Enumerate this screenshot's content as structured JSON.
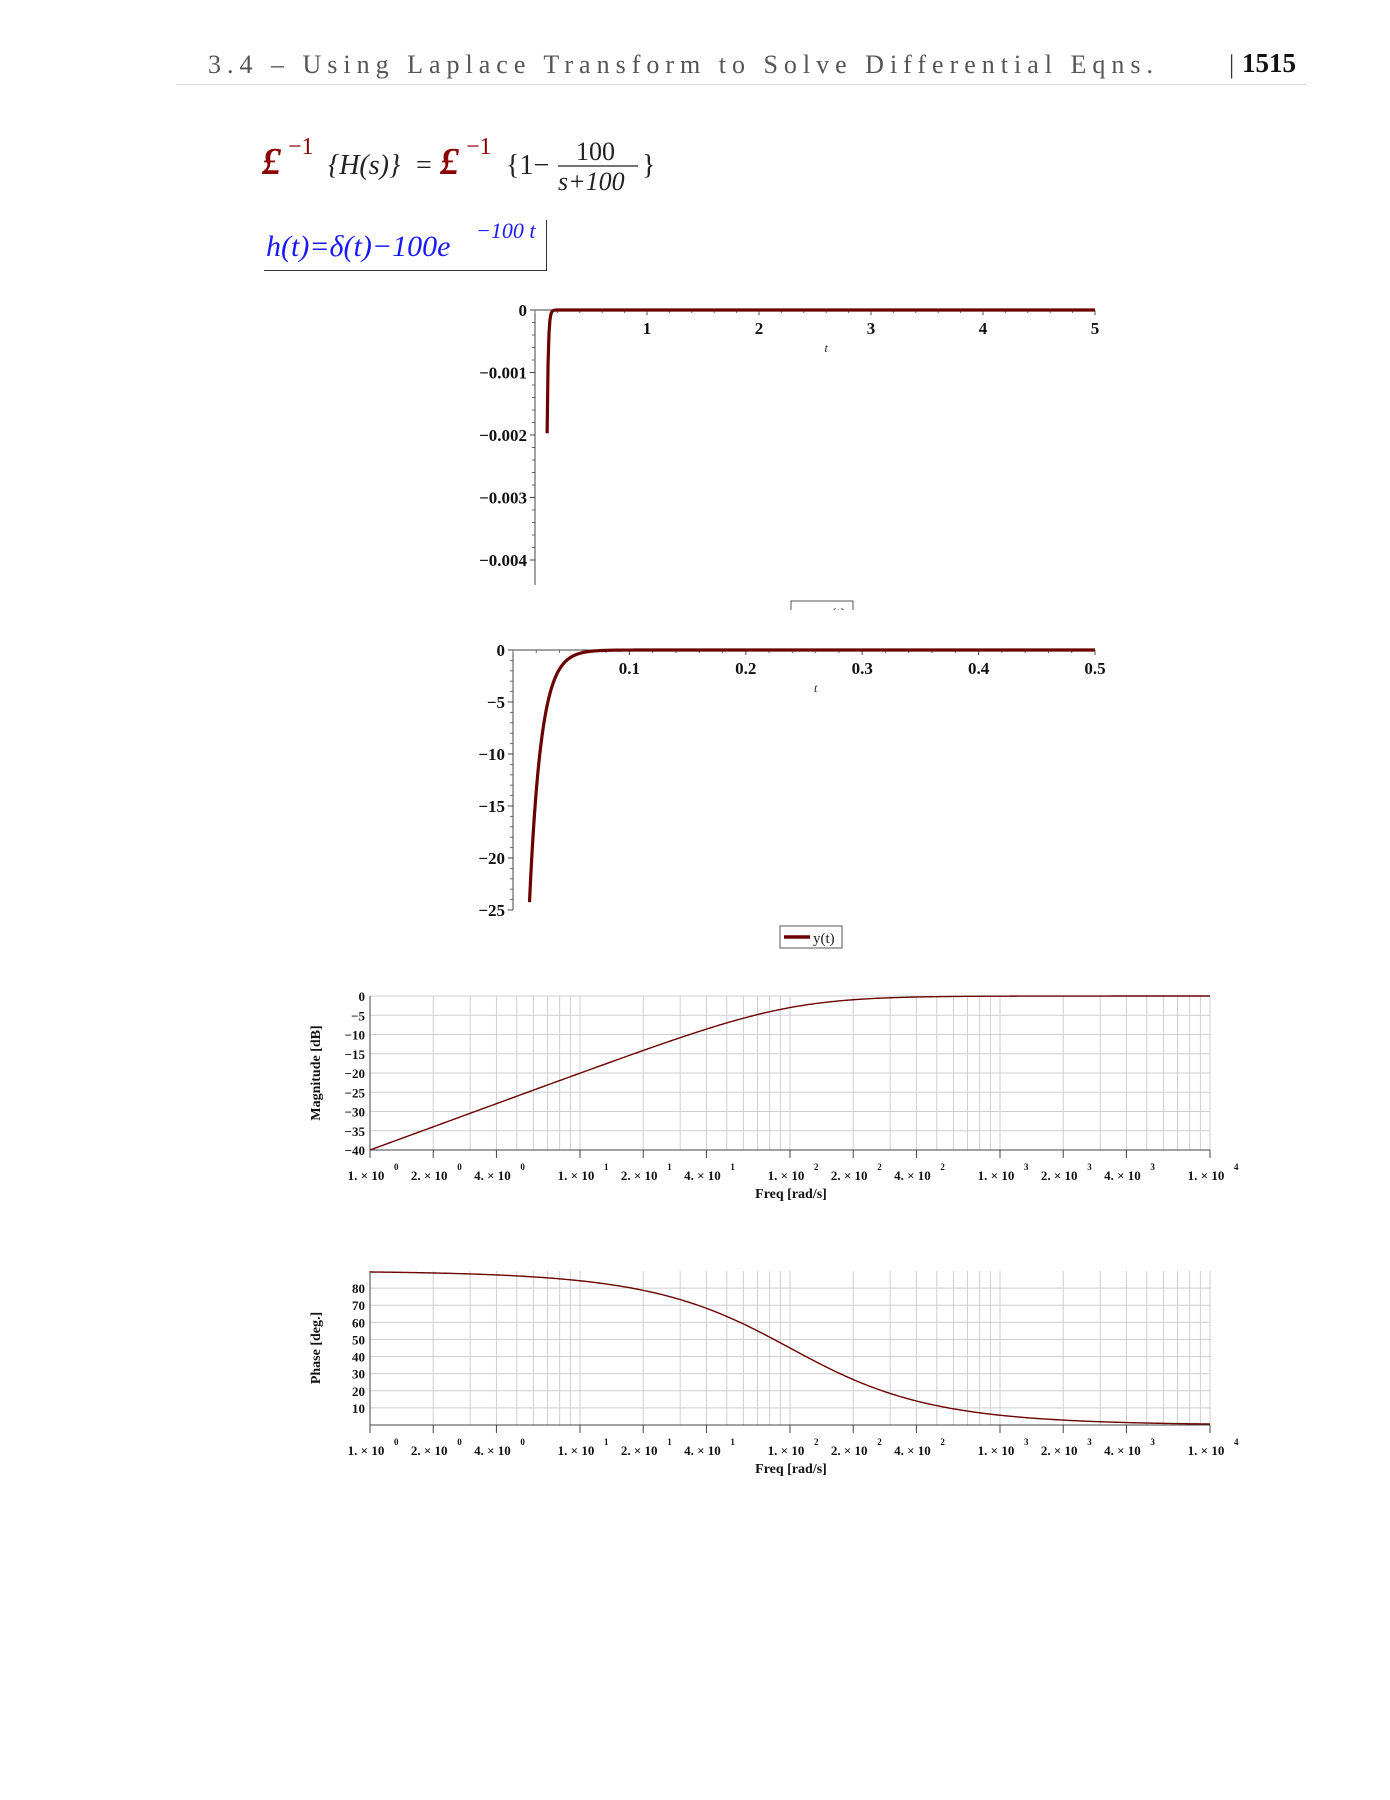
{
  "header": {
    "title": "3.4 – Using Laplace Transform to Solve Differential Eqns.",
    "separator": "|",
    "page_number": "1515"
  },
  "equations": {
    "inverse_laplace": {
      "lhs_operator": "£",
      "superscript": "−1",
      "lhs_arg": "{H(s)}",
      "equals": "=",
      "rhs_operator": "£",
      "rhs_superscript": "−1",
      "rhs_open": "{1−",
      "numerator": "100",
      "denominator": "s+100",
      "rhs_close": "}"
    },
    "impulse_response": {
      "text_main": "h(t)=δ(t)−100e",
      "exponent": "−100 t"
    }
  },
  "chart_data": [
    {
      "type": "line",
      "x_axis_label": "t",
      "xlim": [
        0,
        5
      ],
      "ylim": [
        -0.0044,
        0
      ],
      "x_ticks": [
        "1",
        "2",
        "3",
        "4",
        "5"
      ],
      "y_ticks": [
        "0",
        "−0.001",
        "−0.002",
        "−0.003",
        "−0.004"
      ],
      "legend": "y(t)",
      "series": [
        {
          "name": "y(t)",
          "function": "-100*exp(-100*t)",
          "x": [
            0.1,
            0.12,
            0.15,
            0.2,
            5
          ],
          "y": [
            -0.00454,
            -0.000614,
            -3.06e-05,
            0,
            0
          ]
        }
      ],
      "color": "#6b0000"
    },
    {
      "type": "line",
      "x_axis_label": "t",
      "xlim": [
        0,
        0.5
      ],
      "ylim": [
        -25,
        0
      ],
      "x_ticks": [
        "0.1",
        "0.2",
        "0.3",
        "0.4",
        "0.5"
      ],
      "y_ticks": [
        "0",
        "−5",
        "−10",
        "−15",
        "−20",
        "−25"
      ],
      "legend": "y(t)",
      "series": [
        {
          "name": "y(t)",
          "function": "-100*exp(-100*t)",
          "x": [
            0.014,
            0.02,
            0.03,
            0.04,
            0.05,
            0.07,
            0.1,
            0.5
          ],
          "y": [
            -24.7,
            -13.5,
            -4.98,
            -1.83,
            -0.67,
            -0.09,
            -0.005,
            0
          ]
        }
      ],
      "color": "#6b0000"
    },
    {
      "type": "line",
      "xscale": "log",
      "xlabel": "Freq [rad/s]",
      "ylabel": "Magnitude [dB]",
      "xlim": [
        1,
        10000
      ],
      "ylim": [
        -40,
        0
      ],
      "x_ticks": [
        "1. × 10^0",
        "2. × 10^0",
        "4. × 10^0",
        "1. × 10^1",
        "2. × 10^1",
        "4. × 10^1",
        "1. × 10^2",
        "2. × 10^2",
        "4. × 10^2",
        "1. × 10^3",
        "2. × 10^3",
        "4. × 10^3",
        "1. × 10^4"
      ],
      "y_ticks": [
        "0",
        "−5",
        "−10",
        "−15",
        "−20",
        "−25",
        "−30",
        "−35",
        "−40"
      ],
      "series": [
        {
          "name": "magnitude",
          "x": [
            1,
            2,
            4,
            10,
            20,
            40,
            100,
            200,
            400,
            1000,
            10000
          ],
          "y": [
            -40,
            -34,
            -28,
            -20.2,
            -14.2,
            -8.6,
            -3.0,
            -0.97,
            -0.26,
            -0.04,
            0
          ]
        }
      ],
      "grid": true,
      "color": "#6b0000"
    },
    {
      "type": "line",
      "xscale": "log",
      "xlabel": "Freq [rad/s]",
      "ylabel": "Phase [deg.]",
      "xlim": [
        1,
        10000
      ],
      "ylim": [
        0,
        90
      ],
      "x_ticks": [
        "1. × 10^0",
        "2. × 10^0",
        "4. × 10^0",
        "1. × 10^1",
        "2. × 10^1",
        "4. × 10^1",
        "1. × 10^2",
        "2. × 10^2",
        "4. × 10^2",
        "1. × 10^3",
        "2. × 10^3",
        "4. × 10^3",
        "1. × 10^4"
      ],
      "y_ticks": [
        "10",
        "20",
        "30",
        "40",
        "50",
        "60",
        "70",
        "80"
      ],
      "series": [
        {
          "name": "phase",
          "x": [
            1,
            2,
            4,
            10,
            20,
            40,
            100,
            200,
            400,
            1000,
            2000,
            4000,
            10000
          ],
          "y": [
            89.4,
            88.9,
            87.7,
            84.3,
            78.7,
            68.2,
            45,
            26.6,
            14,
            5.7,
            2.9,
            1.4,
            0.6
          ]
        }
      ],
      "grid": true,
      "color": "#6b0000"
    }
  ]
}
